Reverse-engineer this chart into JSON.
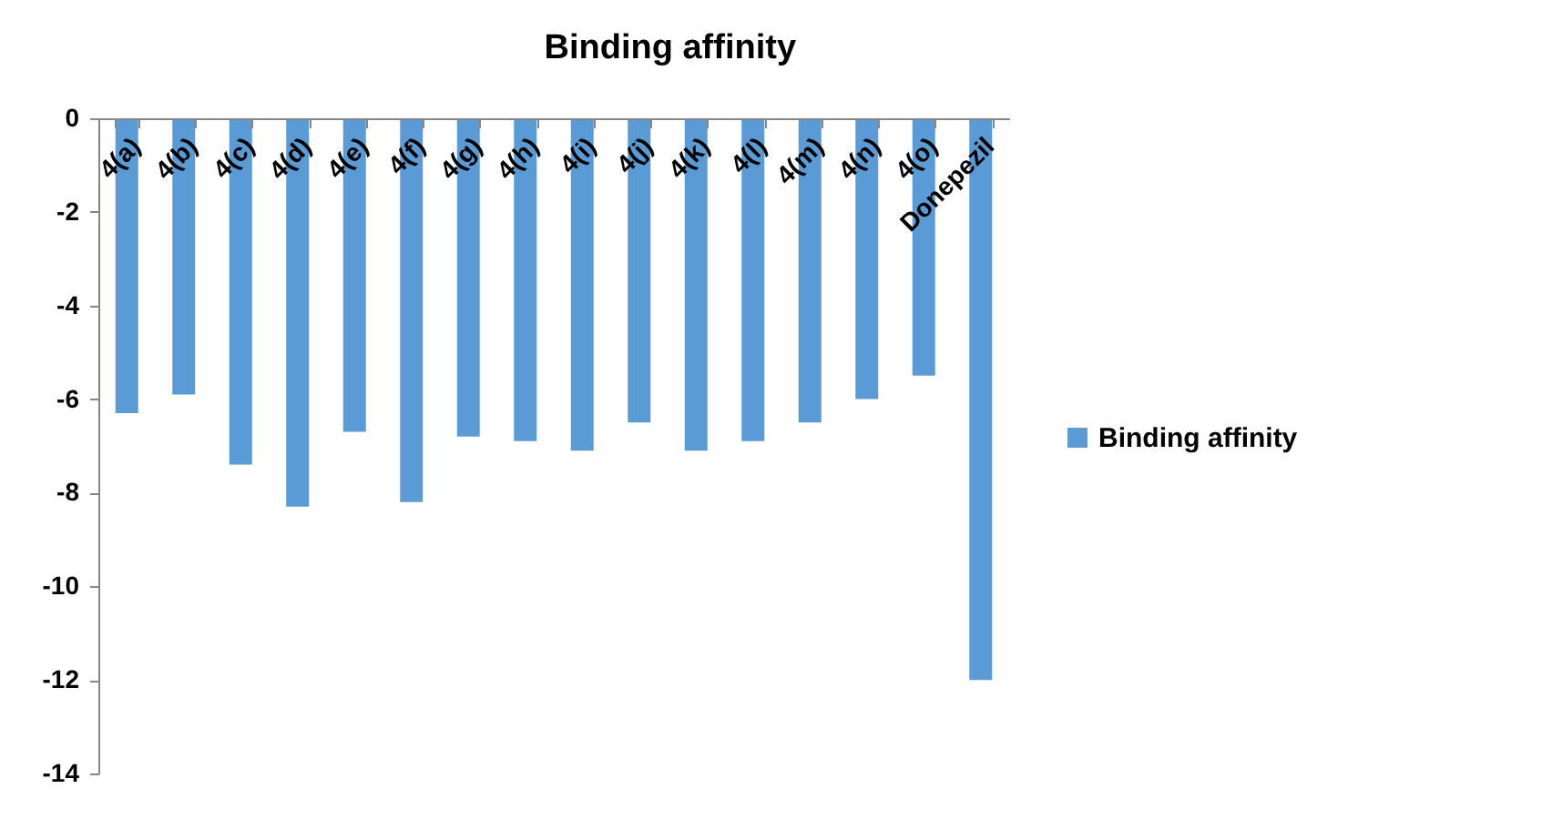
{
  "chart_data": {
    "type": "bar",
    "title": "Binding affinity",
    "categories": [
      "4(a)",
      "4(b)",
      "4(c)",
      "4(d)",
      "4(e)",
      "4(f)",
      "4(g)",
      "4(h)",
      "4(i)",
      "4(j)",
      "4(k)",
      "4(l)",
      "4(m)",
      "4(n)",
      "4(o)",
      "Donepezil"
    ],
    "series": [
      {
        "name": "Binding affinity",
        "color": "#5b9bd5",
        "values": [
          -6.3,
          -5.9,
          -7.4,
          -8.3,
          -6.7,
          -8.2,
          -6.8,
          -6.9,
          -7.1,
          -6.5,
          -7.1,
          -6.9,
          -6.5,
          -6.0,
          -5.5,
          -12.0
        ]
      }
    ],
    "ylim": [
      -14,
      0
    ],
    "yticks": [
      -14,
      -12,
      -10,
      -8,
      -6,
      -4,
      -2,
      0
    ],
    "legend": "right",
    "grid": false
  }
}
